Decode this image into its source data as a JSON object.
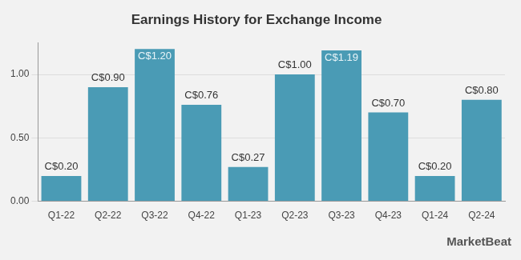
{
  "chart_data": {
    "type": "bar",
    "title": "Earnings History for Exchange Income",
    "categories": [
      "Q1-22",
      "Q2-22",
      "Q3-22",
      "Q4-22",
      "Q1-23",
      "Q2-23",
      "Q3-23",
      "Q4-23",
      "Q1-24",
      "Q2-24"
    ],
    "values": [
      0.2,
      0.9,
      1.2,
      0.76,
      0.27,
      1.0,
      1.19,
      0.7,
      0.2,
      0.8
    ],
    "value_labels": [
      "C$0.20",
      "C$0.90",
      "C$1.20",
      "C$0.76",
      "C$0.27",
      "C$1.00",
      "C$1.19",
      "C$0.70",
      "C$0.20",
      "C$0.80"
    ],
    "color": "#4a9bb5",
    "ylim": [
      0,
      1.25
    ],
    "yticks": [
      {
        "value": 0,
        "label": "0.00"
      },
      {
        "value": 0.5,
        "label": "0.50"
      },
      {
        "value": 1,
        "label": "1.00"
      }
    ],
    "grid": true,
    "data_labels": true,
    "annotations": [
      "MarketBeat"
    ]
  }
}
